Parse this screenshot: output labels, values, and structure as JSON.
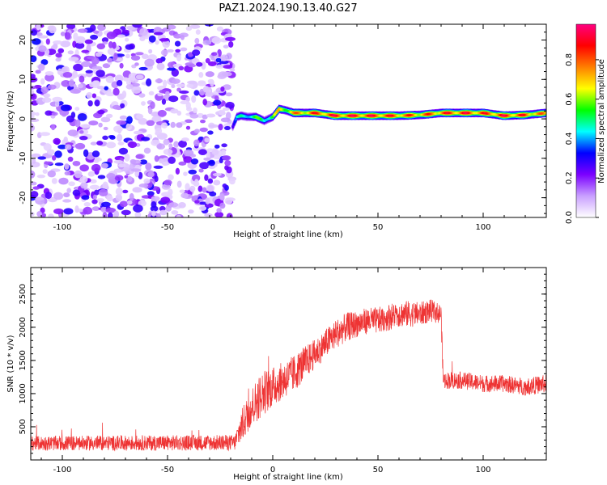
{
  "title": "PAZ1.2024.190.13.40.G27",
  "chart_data": [
    {
      "type": "heatmap",
      "xlabel": "Height of straight line (km)",
      "ylabel": "Frequency (Hz)",
      "xlim": [
        -115,
        130
      ],
      "ylim": [
        -25,
        24
      ],
      "xticks": [
        -100,
        -50,
        0,
        50,
        100
      ],
      "yticks": [
        20,
        10,
        0,
        -10,
        -20
      ],
      "grid": false,
      "noise_region_x": [
        -115,
        -19
      ],
      "ridge": {
        "x": [
          -19,
          -17,
          -15,
          -12,
          -8,
          -4,
          0,
          3,
          6,
          10,
          15,
          20,
          30,
          40,
          50,
          60,
          70,
          80,
          90,
          100,
          110,
          120,
          130
        ],
        "freq": [
          -2,
          0.5,
          0.8,
          0.5,
          0.5,
          -0.5,
          0.5,
          2.5,
          2.2,
          1.5,
          1.5,
          1.5,
          0.8,
          0.8,
          0.8,
          0.8,
          1.0,
          1.5,
          1.5,
          1.5,
          0.8,
          1.0,
          1.5
        ],
        "amplitude": [
          0.35,
          0.45,
          0.5,
          0.55,
          0.6,
          0.55,
          0.65,
          0.75,
          0.75,
          0.8,
          0.85,
          0.9,
          0.95,
          0.95,
          0.95,
          0.9,
          0.85,
          0.9,
          0.95,
          0.9,
          0.95,
          0.9,
          0.8
        ]
      },
      "colorbar": {
        "label": "Normalized spectral amplitude",
        "ticks": [
          "0.0",
          "0.2",
          "0.4",
          "0.6",
          "0.8"
        ],
        "range": [
          0,
          0.98
        ],
        "colors": [
          "#ffffff",
          "#c9a0ff",
          "#7b00ff",
          "#0000ff",
          "#00ffff",
          "#00ff00",
          "#ffff00",
          "#ff7f00",
          "#ff0000",
          "#ff0080"
        ]
      },
      "xtick_labels": [
        "-100",
        "-50",
        "0",
        "50",
        "100"
      ],
      "ytick_labels": [
        "20",
        "10",
        "0",
        "-10",
        "-20"
      ]
    },
    {
      "type": "line",
      "xlabel": "Height of straight line (km)",
      "ylabel": "SNR (10 * v/v)",
      "xlim": [
        -115,
        130
      ],
      "ylim": [
        0,
        2900
      ],
      "xticks": [
        -100,
        -50,
        0,
        50,
        100
      ],
      "xtick_labels": [
        "-100",
        "-50",
        "0",
        "50",
        "100"
      ],
      "yticks": [
        500,
        1000,
        1500,
        2000,
        2500
      ],
      "ytick_labels": [
        "500",
        "1000",
        "1500",
        "2000",
        "2500"
      ],
      "grid": false,
      "series": [
        {
          "color": "#ee3333",
          "envelope_x": [
            -115,
            -18,
            -15,
            -10,
            -5,
            0,
            5,
            10,
            15,
            20,
            25,
            30,
            35,
            40,
            45,
            50,
            55,
            60,
            65,
            70,
            75,
            80,
            81,
            90,
            100,
            110,
            120,
            130
          ],
          "mean": [
            250,
            260,
            500,
            800,
            1000,
            1100,
            1200,
            1300,
            1450,
            1600,
            1750,
            1900,
            2000,
            2050,
            2100,
            2100,
            2150,
            2200,
            2200,
            2200,
            2250,
            2200,
            1200,
            1200,
            1150,
            1150,
            1100,
            1150
          ],
          "spread": [
            110,
            120,
            250,
            300,
            350,
            300,
            280,
            280,
            260,
            220,
            220,
            220,
            220,
            200,
            200,
            200,
            200,
            200,
            200,
            180,
            170,
            150,
            130,
            130,
            130,
            130,
            130,
            140
          ]
        }
      ]
    }
  ]
}
